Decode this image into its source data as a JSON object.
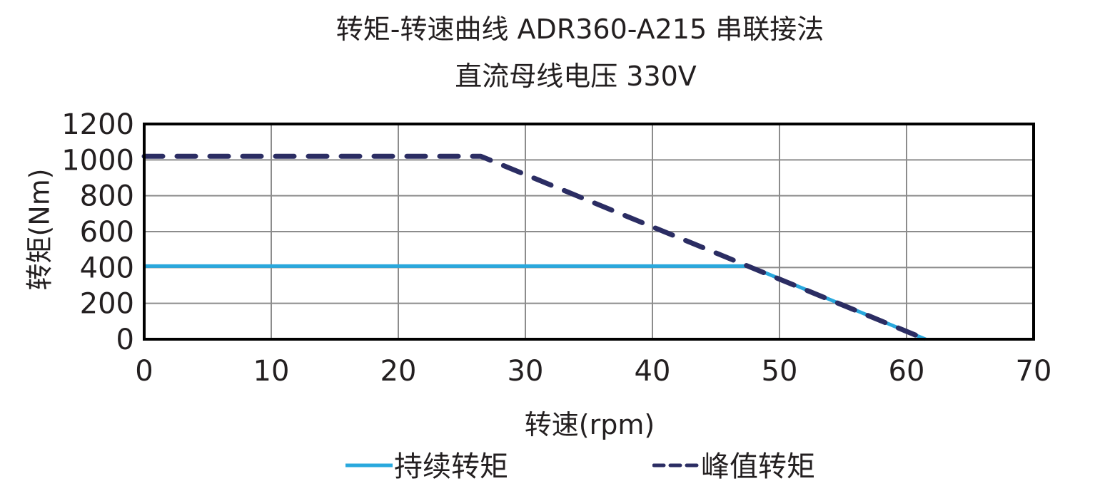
{
  "title_line1": "转矩-转速曲线 ADR360-A215 串联接法",
  "title_line2": "直流母线电压 330V",
  "x_axis_label": "转速(rpm)",
  "y_axis_label": "转矩(Nm)",
  "legend": [
    {
      "label": "持续转矩",
      "style": "solid",
      "color": "#29a8dd"
    },
    {
      "label": "峰值转矩",
      "style": "dashed",
      "color": "#2b2d63"
    }
  ],
  "chart_data": {
    "type": "line",
    "title": "转矩-转速曲线 ADR360-A215 串联接法 / 直流母线电压 330V",
    "xlabel": "转速(rpm)",
    "ylabel": "转矩(Nm)",
    "xlim": [
      0,
      70
    ],
    "ylim": [
      0,
      1200
    ],
    "x_ticks": [
      0,
      10,
      20,
      30,
      40,
      50,
      60,
      70
    ],
    "y_ticks": [
      0,
      200,
      400,
      600,
      800,
      1000,
      1200
    ],
    "grid": true,
    "legend_position": "bottom",
    "series": [
      {
        "name": "持续转矩",
        "style": "solid",
        "color": "#29a8dd",
        "x": [
          0,
          47.6,
          61.5
        ],
        "y": [
          408,
          408,
          0
        ]
      },
      {
        "name": "峰值转矩",
        "style": "dashed",
        "color": "#2b2d63",
        "x": [
          0,
          26.5,
          61.5
        ],
        "y": [
          1020,
          1020,
          0
        ]
      }
    ]
  }
}
